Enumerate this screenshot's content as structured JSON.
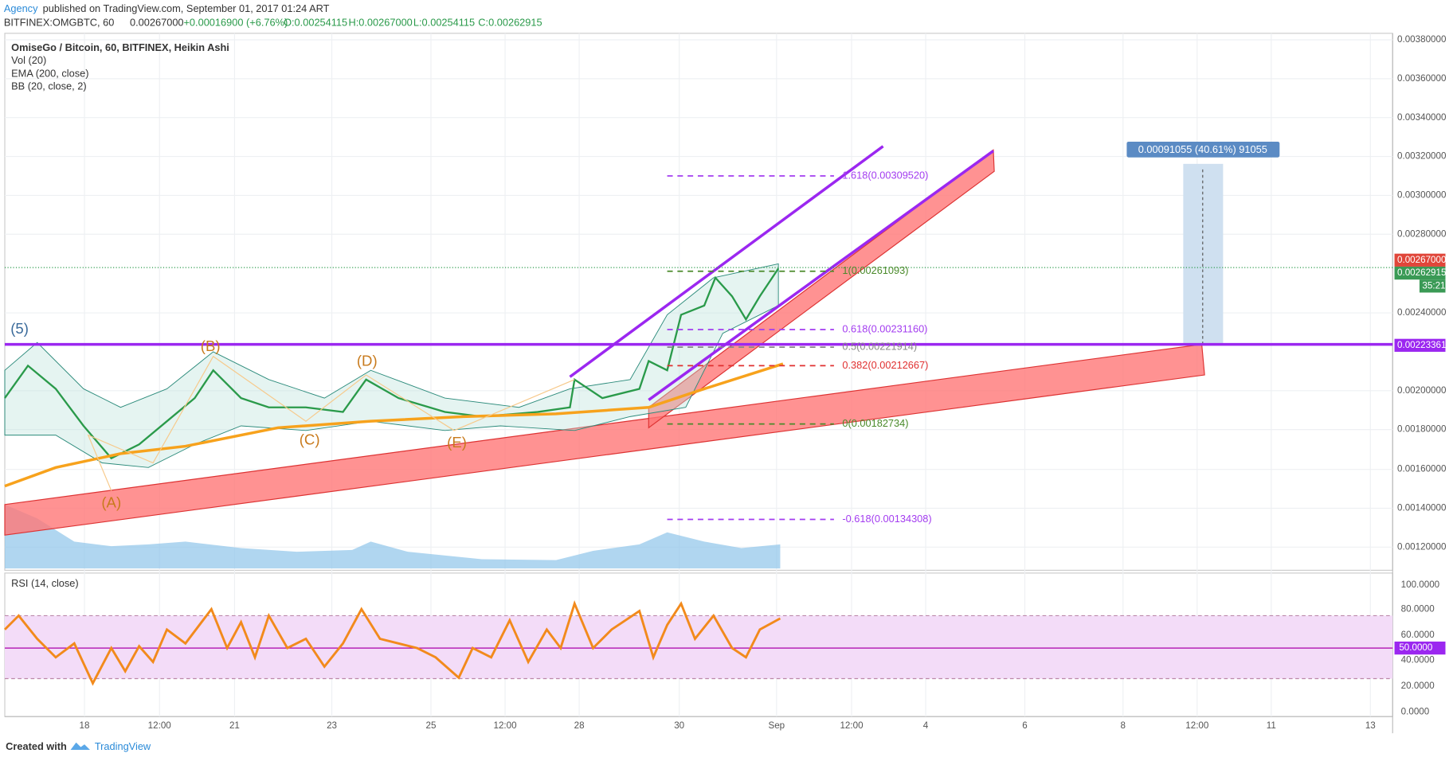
{
  "header": {
    "publisher": "Agency",
    "published": "published on TradingView.com, September 01, 2017 01:24 ART",
    "symbol": "BITFINEX:OMGBTC, 60",
    "last": "0.00267000",
    "change": "+0.00016900 (+6.76%)",
    "open": "O:0.00254115",
    "high": "H:0.00267000",
    "low": "L:0.00254115",
    "close": "C:0.00262915"
  },
  "legend": [
    "OmiseGo / Bitcoin, 60, BITFINEX, Heikin Ashi",
    "Vol (20)",
    "EMA (200, close)",
    "BB (20, close, 2)"
  ],
  "price_axis": [
    "0.00380000",
    "0.00360000",
    "0.00340000",
    "0.00320000",
    "0.00300000",
    "0.00280000",
    "0.00240000",
    "0.00200000",
    "0.00180000",
    "0.00160000",
    "0.00140000",
    "0.00120000"
  ],
  "price_badges": {
    "last": "0.00267000",
    "close": "0.00262915",
    "countdown": "35:21",
    "level": "0.00223361"
  },
  "rsi": {
    "label": "RSI (14, close)",
    "axis": [
      "100.0000",
      "80.0000",
      "60.0000",
      "40.0000",
      "20.0000",
      "0.0000"
    ],
    "badge": "50.0000"
  },
  "time_axis": [
    "18",
    "12:00",
    "21",
    "23",
    "25",
    "12:00",
    "28",
    "30",
    "Sep",
    "12:00",
    "4",
    "6",
    "8",
    "12:00",
    "11",
    "13"
  ],
  "fib_levels": [
    "1.618(0.00309520)",
    "1(0.00261093)",
    "0.618(0.00231160)",
    "0.5(0.00221914)",
    "0.382(0.00212667)",
    "0(0.00182734)",
    "-0.618(0.00134308)"
  ],
  "waves": [
    "(5)",
    "(B)",
    "(D)",
    "(C)",
    "(E)",
    "(A)"
  ],
  "measure": "0.00091055 (40.61%) 91055",
  "footer": {
    "created": "Created with",
    "brand": "TradingView"
  }
}
